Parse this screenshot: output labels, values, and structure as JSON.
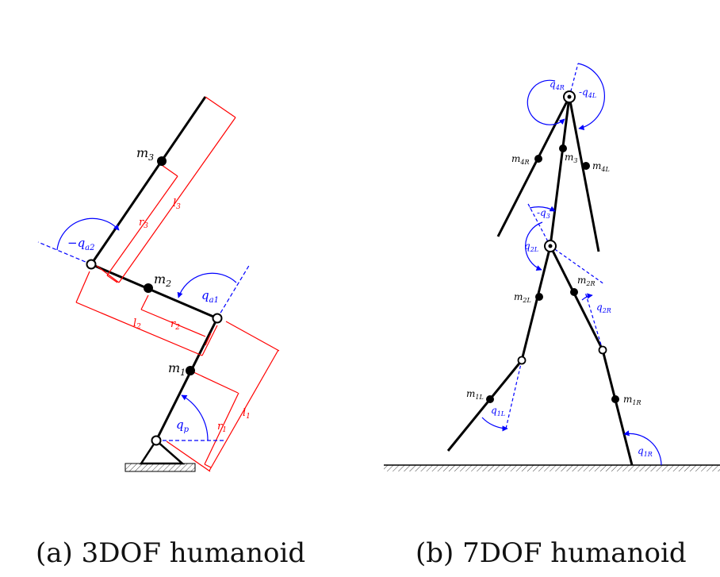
{
  "colors": {
    "link": "#000000",
    "dimension": "#ff0000",
    "angle": "#0000ff",
    "background": "#ffffff"
  },
  "left": {
    "caption": "(a) 3DOF humanoid",
    "masses": {
      "m1": "m",
      "m1_sub": "1",
      "m2": "m",
      "m2_sub": "2",
      "m3": "m",
      "m3_sub": "3"
    },
    "dims": {
      "l1": "l",
      "l1_sub": "1",
      "l2": "l",
      "l2_sub": "2",
      "l3": "l",
      "l3_sub": "3",
      "r1": "r",
      "r1_sub": "1",
      "r2": "r",
      "r2_sub": "2",
      "r3": "r",
      "r3_sub": "3"
    },
    "angles": {
      "qp": "q",
      "qp_sub": "p",
      "qa1": "q",
      "qa1_sub": "a1",
      "qa2": "−q",
      "qa2_sub": "a2"
    }
  },
  "right": {
    "caption": "(b) 7DOF humanoid",
    "masses": {
      "m4R": "m",
      "m4R_sub": "4R",
      "m3": "m",
      "m3_sub": "3",
      "m4L": "m",
      "m4L_sub": "4L",
      "m2L": "m",
      "m2L_sub": "2L",
      "m2R": "m",
      "m2R_sub": "2R",
      "m1L": "m",
      "m1L_sub": "1L",
      "m1R": "m",
      "m1R_sub": "1R"
    },
    "angles": {
      "q4R": "q",
      "q4R_sub": "4R",
      "q4L": "-q",
      "q4L_sub": "4L",
      "q3": "-q",
      "q3_sub": "3",
      "q2L": "q",
      "q2L_sub": "2L",
      "q2R": "q",
      "q2R_sub": "2R",
      "q1L": "q",
      "q1L_sub": "1L",
      "q1R": "q",
      "q1R_sub": "1R"
    }
  }
}
